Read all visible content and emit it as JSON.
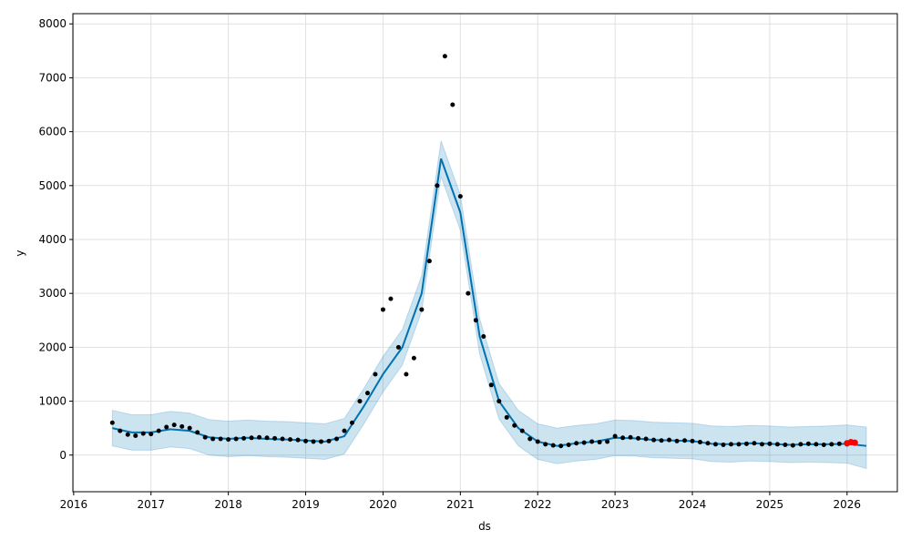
{
  "chart_data": {
    "type": "forecast",
    "x_label": "ds",
    "y_label": "y",
    "xlim": [
      2015.99,
      2026.65
    ],
    "ylim": [
      -680,
      8190
    ],
    "xticks": [
      2016,
      2017,
      2018,
      2019,
      2020,
      2021,
      2022,
      2023,
      2024,
      2025,
      2026
    ],
    "yticks": [
      0,
      1000,
      2000,
      3000,
      4000,
      5000,
      6000,
      7000,
      8000
    ],
    "grid": true,
    "observed": {
      "color": "#000000",
      "x": [
        2016.5,
        2016.6,
        2016.7,
        2016.8,
        2016.9,
        2017.0,
        2017.1,
        2017.2,
        2017.3,
        2017.4,
        2017.5,
        2017.6,
        2017.7,
        2017.8,
        2017.9,
        2018.0,
        2018.1,
        2018.2,
        2018.3,
        2018.4,
        2018.5,
        2018.6,
        2018.7,
        2018.8,
        2018.9,
        2019.0,
        2019.1,
        2019.2,
        2019.3,
        2019.4,
        2019.5,
        2019.6,
        2019.7,
        2019.8,
        2019.9,
        2020.0,
        2020.1,
        2020.2,
        2020.3,
        2020.4,
        2020.5,
        2020.6,
        2020.7,
        2020.8,
        2020.9,
        2021.0,
        2021.1,
        2021.2,
        2021.3,
        2021.4,
        2021.5,
        2021.6,
        2021.7,
        2021.8,
        2021.9,
        2022.0,
        2022.1,
        2022.2,
        2022.3,
        2022.4,
        2022.5,
        2022.6,
        2022.7,
        2022.8,
        2022.9,
        2023.0,
        2023.1,
        2023.2,
        2023.3,
        2023.4,
        2023.5,
        2023.6,
        2023.7,
        2023.8,
        2023.9,
        2024.0,
        2024.1,
        2024.2,
        2024.3,
        2024.4,
        2024.5,
        2024.6,
        2024.7,
        2024.8,
        2024.9,
        2025.0,
        2025.1,
        2025.2,
        2025.3,
        2025.4,
        2025.5,
        2025.6,
        2025.7,
        2025.8,
        2025.9,
        2026.0
      ],
      "values": [
        600,
        450,
        380,
        360,
        400,
        390,
        450,
        520,
        560,
        530,
        500,
        420,
        330,
        300,
        300,
        290,
        300,
        310,
        320,
        330,
        320,
        310,
        300,
        290,
        280,
        260,
        250,
        250,
        260,
        300,
        450,
        600,
        1000,
        1150,
        1500,
        2700,
        2900,
        2000,
        1500,
        1800,
        2700,
        3600,
        5000,
        7400,
        6500,
        4800,
        3000,
        2500,
        2200,
        1300,
        1000,
        700,
        550,
        450,
        300,
        250,
        200,
        180,
        170,
        190,
        220,
        230,
        250,
        240,
        250,
        350,
        320,
        330,
        310,
        300,
        280,
        270,
        280,
        260,
        270,
        260,
        240,
        220,
        200,
        190,
        200,
        200,
        210,
        220,
        200,
        210,
        200,
        190,
        180,
        200,
        210,
        200,
        190,
        200,
        210,
        200
      ]
    },
    "recent": {
      "color": "#ff0000",
      "x": [
        2026.0,
        2026.05,
        2026.1
      ],
      "values": [
        220,
        240,
        230
      ]
    },
    "forecast": {
      "color": "#0072B2",
      "x": [
        2016.5,
        2016.75,
        2017.0,
        2017.25,
        2017.5,
        2017.75,
        2018.0,
        2018.25,
        2018.5,
        2018.75,
        2019.0,
        2019.25,
        2019.5,
        2019.75,
        2020.0,
        2020.25,
        2020.5,
        2020.75,
        2021.0,
        2021.25,
        2021.5,
        2021.75,
        2022.0,
        2022.25,
        2022.5,
        2022.75,
        2023.0,
        2023.25,
        2023.5,
        2023.75,
        2024.0,
        2024.25,
        2024.5,
        2024.75,
        2025.0,
        2025.25,
        2025.5,
        2025.75,
        2026.0,
        2026.25
      ],
      "values": [
        500,
        420,
        420,
        480,
        450,
        330,
        300,
        320,
        300,
        290,
        270,
        250,
        350,
        900,
        1500,
        2000,
        3000,
        5500,
        4500,
        2200,
        1000,
        500,
        250,
        170,
        220,
        250,
        320,
        310,
        280,
        270,
        260,
        210,
        200,
        220,
        210,
        190,
        200,
        200,
        210,
        170
      ],
      "lower": [
        170,
        90,
        90,
        150,
        120,
        0,
        -30,
        -10,
        -30,
        -40,
        -60,
        -80,
        20,
        570,
        1170,
        1670,
        2670,
        5170,
        4170,
        1870,
        670,
        170,
        -80,
        -160,
        -110,
        -80,
        -10,
        -20,
        -50,
        -60,
        -70,
        -120,
        -130,
        -110,
        -120,
        -140,
        -130,
        -140,
        -150,
        -250
      ],
      "upper": [
        830,
        750,
        750,
        810,
        780,
        660,
        630,
        650,
        630,
        620,
        600,
        580,
        680,
        1230,
        1830,
        2330,
        3330,
        5830,
        4830,
        2530,
        1330,
        830,
        580,
        500,
        550,
        580,
        650,
        640,
        610,
        600,
        590,
        540,
        530,
        550,
        540,
        520,
        530,
        540,
        560,
        520
      ]
    }
  }
}
